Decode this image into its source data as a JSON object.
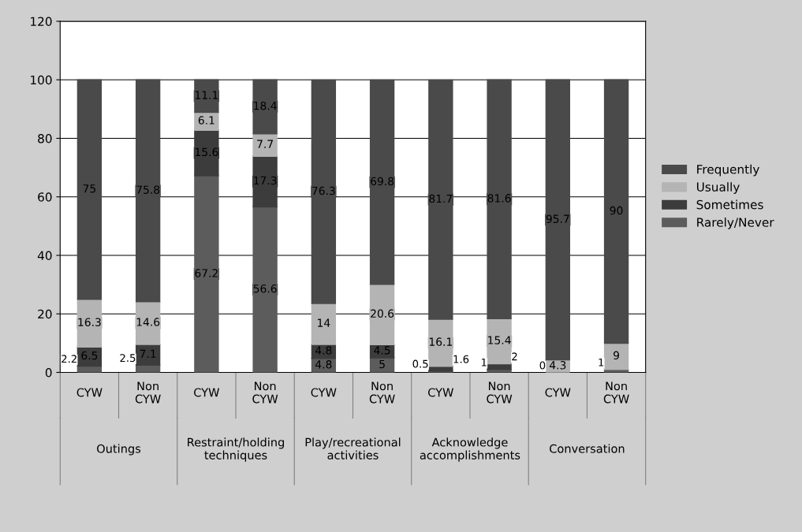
{
  "chart_data": {
    "type": "bar",
    "stacked": true,
    "categories": [
      "CYW",
      "Non\nCYW",
      "CYW",
      "Non\nCYW",
      "CYW",
      "Non\nCYW",
      "CYW",
      "Non\nCYW",
      "CYW",
      "Non\nCYW"
    ],
    "annotations": [
      "Outings",
      "Restraint/holding\ntechniques",
      "Play/recreational\nactivities",
      "Acknowledge\naccomplishments",
      "Conversation"
    ],
    "series": [
      {
        "name": "Rarely/Never",
        "color": "#5c5c5c",
        "values": [
          2.2,
          2.5,
          67.2,
          56.6,
          4.8,
          5,
          0.5,
          1,
          0,
          1
        ],
        "value_labels": [
          "2.2",
          "2.5",
          "67.2",
          "56.6",
          "4.8",
          "5",
          "0.5",
          "1",
          "0",
          "1"
        ]
      },
      {
        "name": "Sometimes",
        "color": "#3c3c3c",
        "values": [
          6.5,
          7.1,
          15.6,
          17.3,
          4.8,
          4.5,
          1.6,
          2,
          0,
          0
        ],
        "value_labels": [
          "6.5",
          "7.1",
          "15.6",
          "17.3",
          "4.8",
          "4.5",
          "1.6",
          "2",
          null,
          null
        ]
      },
      {
        "name": "Usually",
        "color": "#b4b4b4",
        "values": [
          16.3,
          14.6,
          6.1,
          7.7,
          14,
          20.6,
          16.1,
          15.4,
          4.3,
          9
        ],
        "value_labels": [
          "16.3",
          "14.6",
          "6.1",
          "7.7",
          "14",
          "20.6",
          "16.1",
          "15.4",
          "4.3",
          "9"
        ]
      },
      {
        "name": "Frequently",
        "color": "#4a4a4a",
        "values": [
          75,
          75.8,
          11.1,
          18.4,
          76.3,
          69.8,
          81.7,
          81.6,
          95.7,
          90
        ],
        "value_labels": [
          "75",
          "75.8",
          "11.1",
          "18.4",
          "76.3",
          "69.8",
          "81.7",
          "81.6",
          "95.7",
          "90"
        ]
      }
    ],
    "ylim": [
      0,
      120
    ],
    "yticks": [
      0,
      20,
      40,
      60,
      80,
      100,
      120
    ],
    "grid": "y",
    "legend": "right"
  }
}
